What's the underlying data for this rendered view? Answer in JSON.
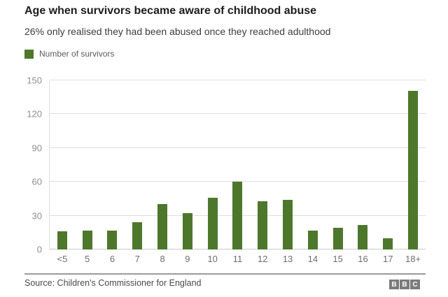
{
  "page": {
    "title": "Age when survivors became aware of childhood abuse",
    "subtitle": "26% only realised they had been abused once they reached adulthood",
    "legend": {
      "label": "Number of survivors",
      "swatch_color": "#4d772b"
    },
    "source": "Source: Children's Commissioner for England",
    "logo": {
      "name": "bbc-logo",
      "letters": [
        "B",
        "B",
        "C"
      ],
      "box_color": "#7b7b7b",
      "letter_color": "#ffffff"
    }
  },
  "chart_data": {
    "type": "bar",
    "title": "Age when survivors became aware of childhood abuse",
    "subtitle": "26% only realised they had been abused once they reached adulthood",
    "legend": [
      "Number of survivors"
    ],
    "legend_position": "top-left",
    "categories": [
      "<5",
      "5",
      "6",
      "7",
      "8",
      "9",
      "10",
      "11",
      "12",
      "13",
      "14",
      "15",
      "16",
      "17",
      "18+"
    ],
    "values": [
      16,
      17,
      17,
      24,
      40,
      32,
      46,
      60,
      43,
      44,
      17,
      19,
      22,
      10,
      141
    ],
    "xlabel": "",
    "ylabel": "",
    "ylim": [
      0,
      150
    ],
    "yticks": [
      0,
      30,
      60,
      90,
      120,
      150
    ],
    "grid": true,
    "bar_color": "#4d772b",
    "gridline_color": "#dedede"
  }
}
